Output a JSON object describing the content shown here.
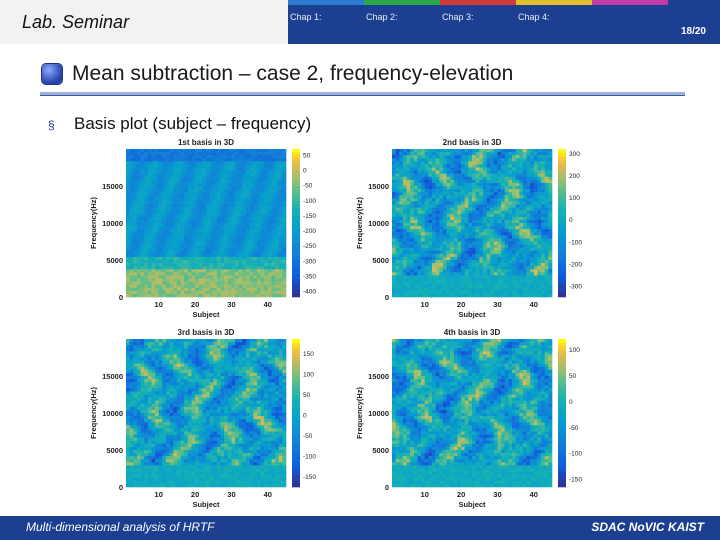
{
  "header": {
    "lab_title": "Lab. Seminar",
    "chapters": [
      {
        "label": "Chap 1:",
        "color": "#2b7bd0"
      },
      {
        "label": "Chap 2:",
        "color": "#2aa84a"
      },
      {
        "label": "Chap 3:",
        "color": "#d13a3a"
      },
      {
        "label": "Chap 4:",
        "color": "#e0c12c"
      },
      {
        "label": "",
        "color": "#c23ba8"
      }
    ],
    "page": "18/20"
  },
  "slide": {
    "title": "Mean subtraction – case 2, frequency-elevation",
    "bullet_mark": "§",
    "bullet": "Basis plot (subject – frequency)"
  },
  "footer": {
    "left": "Multi-dimensional analysis of HRTF",
    "right": "SDAC  NoVIC  KAIST"
  },
  "colors": {
    "header": "#1c3f91",
    "accent_rule": "#9db3dc"
  },
  "chart_data": [
    {
      "type": "heatmap",
      "title": "1st basis in 3D",
      "xlabel": "Subject",
      "ylabel": "Frequency(Hz)",
      "xticks": [
        "10",
        "20",
        "30",
        "40"
      ],
      "yticks": [
        "0",
        "5000",
        "10000",
        "15000"
      ],
      "colorbar_ticks": [
        "50",
        "0",
        "-50",
        "-100",
        "-150",
        "-200",
        "-250",
        "-300",
        "-350",
        "-400"
      ],
      "xlim": [
        1,
        45
      ],
      "ylim": [
        0,
        20000
      ],
      "clim": [
        -420,
        70
      ],
      "pattern": "smooth"
    },
    {
      "type": "heatmap",
      "title": "2nd basis in 3D",
      "xlabel": "Subject",
      "ylabel": "Frequency(Hz)",
      "xticks": [
        "10",
        "20",
        "30",
        "40"
      ],
      "yticks": [
        "0",
        "5000",
        "10000",
        "15000"
      ],
      "colorbar_ticks": [
        "300",
        "200",
        "100",
        "0",
        "-100",
        "-200",
        "-300"
      ],
      "xlim": [
        1,
        45
      ],
      "ylim": [
        0,
        20000
      ],
      "clim": [
        -350,
        320
      ],
      "pattern": "mottled"
    },
    {
      "type": "heatmap",
      "title": "3rd basis in 3D",
      "xlabel": "Subject",
      "ylabel": "Frequency(Hz)",
      "xticks": [
        "10",
        "20",
        "30",
        "40"
      ],
      "yticks": [
        "0",
        "5000",
        "10000",
        "15000"
      ],
      "colorbar_ticks": [
        "150",
        "100",
        "50",
        "0",
        "-50",
        "-100",
        "-150"
      ],
      "xlim": [
        1,
        45
      ],
      "ylim": [
        0,
        20000
      ],
      "clim": [
        -175,
        185
      ],
      "pattern": "mottled"
    },
    {
      "type": "heatmap",
      "title": "4th basis in 3D",
      "xlabel": "Subject",
      "ylabel": "Frequency(Hz)",
      "xticks": [
        "10",
        "20",
        "30",
        "40"
      ],
      "yticks": [
        "0",
        "5000",
        "10000",
        "15000"
      ],
      "colorbar_ticks": [
        "100",
        "50",
        "0",
        "-50",
        "-100",
        "-150"
      ],
      "xlim": [
        1,
        45
      ],
      "ylim": [
        0,
        20000
      ],
      "clim": [
        -165,
        120
      ],
      "pattern": "mottled"
    }
  ]
}
